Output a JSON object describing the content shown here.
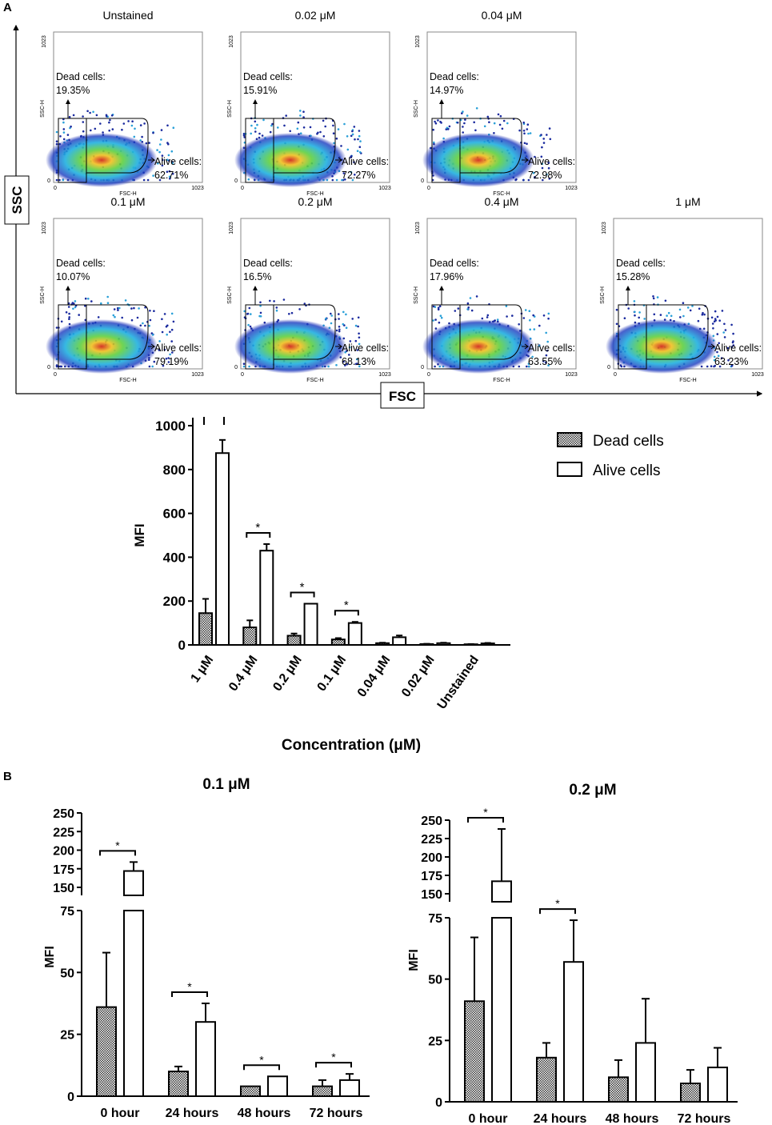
{
  "panel_labels": {
    "a": "A",
    "b": "B"
  },
  "chart_data": [
    {
      "type": "scatter",
      "subtype": "flow-cytometry-density-plots",
      "axis_x_label": "FSC",
      "axis_y_label": "SSC",
      "plot_xlabel": "FSC-H",
      "plot_ylabel": "SSC-H",
      "tick_min": "0",
      "tick_max": "1023",
      "dead_label": "Dead cells:",
      "alive_label": "Alive cells:",
      "plots": [
        {
          "title": "Unstained",
          "dead": "19.35%",
          "alive": "62.71%"
        },
        {
          "title": "0.02 μM",
          "dead": "15.91%",
          "alive": "72.27%"
        },
        {
          "title": "0.04 μM",
          "dead": "14.97%",
          "alive": "72.98%"
        },
        {
          "title": "0.1 μM",
          "dead": "10.07%",
          "alive": "79.19%"
        },
        {
          "title": "0.2 μM",
          "dead": "16.5%",
          "alive": "68.13%"
        },
        {
          "title": "0.4 μM",
          "dead": "17.96%",
          "alive": "63.55%"
        },
        {
          "title": "1 μM",
          "dead": "15.28%",
          "alive": "63.23%"
        }
      ]
    },
    {
      "type": "bar",
      "xlabel": "Concentration (μM)",
      "ylabel": "MFI",
      "ylim": [
        0,
        1000
      ],
      "yticks": [
        0,
        200,
        400,
        600,
        800,
        1000
      ],
      "categories": [
        "1 μM",
        "0.4 μM",
        "0.2 μM",
        "0.1 μM",
        "0.04 μM",
        "0.02 μM",
        "Unstained"
      ],
      "series": [
        {
          "name": "Dead cells",
          "values": [
            145,
            80,
            42,
            25,
            8,
            4,
            3
          ],
          "errors": [
            65,
            32,
            10,
            6,
            2,
            1,
            1
          ]
        },
        {
          "name": "Alive cells",
          "values": [
            875,
            430,
            188,
            100,
            35,
            8,
            7
          ],
          "errors": [
            60,
            30,
            0,
            5,
            8,
            2,
            2
          ]
        }
      ],
      "significance": [
        {
          "category_index": 1,
          "label": "*"
        },
        {
          "category_index": 2,
          "label": "*"
        },
        {
          "category_index": 3,
          "label": "*"
        }
      ]
    },
    {
      "type": "bar",
      "title": "0.1 μM",
      "ylabel": "MFI",
      "axis_break": {
        "lower": [
          0,
          75
        ],
        "upper": [
          150,
          250
        ]
      },
      "yticks_lower": [
        0,
        25,
        50,
        75
      ],
      "yticks_upper": [
        150,
        175,
        200,
        225,
        250
      ],
      "categories": [
        "0 hour",
        "24 hours",
        "48 hours",
        "72 hours"
      ],
      "series": [
        {
          "name": "Dead cells",
          "values": [
            36,
            10,
            4,
            4
          ],
          "errors": [
            22,
            2,
            0,
            2.5
          ]
        },
        {
          "name": "Alive cells",
          "values": [
            172,
            30,
            8,
            6.5
          ],
          "errors": [
            12,
            7.5,
            0,
            2.5
          ]
        }
      ],
      "significance": [
        {
          "category_index": 0,
          "label": "*"
        },
        {
          "category_index": 1,
          "label": "*"
        },
        {
          "category_index": 2,
          "label": "*"
        },
        {
          "category_index": 3,
          "label": "*"
        }
      ]
    },
    {
      "type": "bar",
      "title": "0.2 μM",
      "ylabel": "MFI",
      "axis_break": {
        "lower": [
          0,
          75
        ],
        "upper": [
          150,
          250
        ]
      },
      "yticks_lower": [
        0,
        25,
        50,
        75
      ],
      "yticks_upper": [
        150,
        175,
        200,
        225,
        250
      ],
      "categories": [
        "0 hour",
        "24 hours",
        "48 hours",
        "72 hours"
      ],
      "series": [
        {
          "name": "Dead cells",
          "values": [
            41,
            18,
            10,
            7.5
          ],
          "errors": [
            26,
            6,
            7,
            5.5
          ]
        },
        {
          "name": "Alive cells",
          "values": [
            167,
            57,
            24,
            14
          ],
          "errors": [
            71,
            17,
            18,
            8
          ]
        }
      ],
      "significance": [
        {
          "category_index": 0,
          "label": "*"
        },
        {
          "category_index": 1,
          "label": "*"
        }
      ]
    }
  ]
}
